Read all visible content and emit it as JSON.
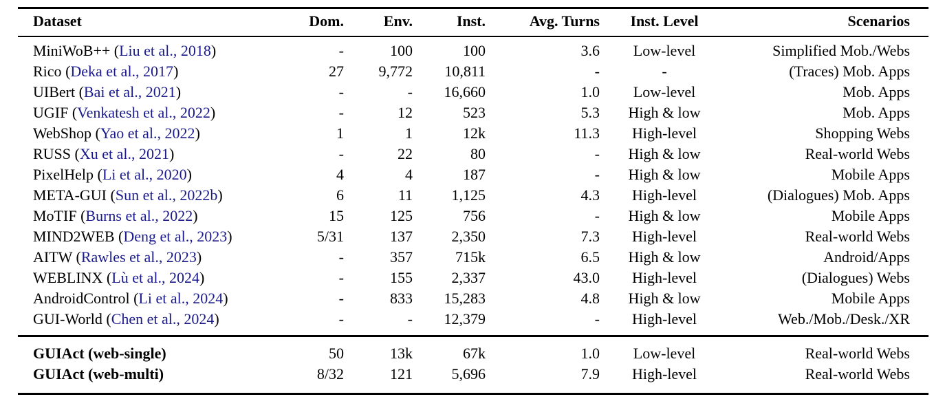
{
  "colors": {
    "background": "#ffffff",
    "text": "#000000",
    "citation_link": "#1a1a8c",
    "rule": "#000000"
  },
  "table": {
    "format": {
      "paren_open": "(",
      "paren_close": ")"
    },
    "columns": [
      {
        "key": "dataset",
        "label": "Dataset",
        "align": "left"
      },
      {
        "key": "dom",
        "label": "Dom.",
        "align": "right"
      },
      {
        "key": "env",
        "label": "Env.",
        "align": "right"
      },
      {
        "key": "inst",
        "label": "Inst.",
        "align": "right"
      },
      {
        "key": "avg_turns",
        "label": "Avg. Turns",
        "align": "right"
      },
      {
        "key": "inst_level",
        "label": "Inst. Level",
        "align": "center"
      },
      {
        "key": "scenarios",
        "label": "Scenarios",
        "align": "right"
      }
    ],
    "rows": [
      {
        "dataset_name": "MiniWoB++",
        "citation": "Liu et al., 2018",
        "dom": "-",
        "env": "100",
        "inst": "100",
        "avg_turns": "3.6",
        "inst_level": "Low-level",
        "scenarios": "Simplified Mob./Webs"
      },
      {
        "dataset_name": "Rico",
        "citation": "Deka et al., 2017",
        "dom": "27",
        "env": "9,772",
        "inst": "10,811",
        "avg_turns": "-",
        "inst_level": "-",
        "scenarios": "(Traces) Mob. Apps"
      },
      {
        "dataset_name": "UIBert",
        "citation": "Bai et al., 2021",
        "dom": "-",
        "env": "-",
        "inst": "16,660",
        "avg_turns": "1.0",
        "inst_level": "Low-level",
        "scenarios": "Mob. Apps"
      },
      {
        "dataset_name": "UGIF",
        "citation": "Venkatesh et al., 2022",
        "dom": "-",
        "env": "12",
        "inst": "523",
        "avg_turns": "5.3",
        "inst_level": "High & low",
        "scenarios": "Mob. Apps"
      },
      {
        "dataset_name": "WebShop",
        "citation": "Yao et al., 2022",
        "dom": "1",
        "env": "1",
        "inst": "12k",
        "avg_turns": "11.3",
        "inst_level": "High-level",
        "scenarios": "Shopping Webs"
      },
      {
        "dataset_name": "RUSS",
        "citation": "Xu et al., 2021",
        "dom": "-",
        "env": "22",
        "inst": "80",
        "avg_turns": "-",
        "inst_level": "High & low",
        "scenarios": "Real-world Webs"
      },
      {
        "dataset_name": "PixelHelp",
        "citation": "Li et al., 2020",
        "dom": "4",
        "env": "4",
        "inst": "187",
        "avg_turns": "-",
        "inst_level": "High & low",
        "scenarios": "Mobile Apps"
      },
      {
        "dataset_name": "META-GUI",
        "citation": "Sun et al., 2022b",
        "dom": "6",
        "env": "11",
        "inst": "1,125",
        "avg_turns": "4.3",
        "inst_level": "High-level",
        "scenarios": "(Dialogues) Mob. Apps"
      },
      {
        "dataset_name": "MoTIF",
        "citation": "Burns et al., 2022",
        "dom": "15",
        "env": "125",
        "inst": "756",
        "avg_turns": "-",
        "inst_level": "High & low",
        "scenarios": "Mobile Apps"
      },
      {
        "dataset_name": "MIND2WEB",
        "citation": "Deng et al., 2023",
        "dom": "5/31",
        "env": "137",
        "inst": "2,350",
        "avg_turns": "7.3",
        "inst_level": "High-level",
        "scenarios": "Real-world Webs"
      },
      {
        "dataset_name": "AITW",
        "citation": "Rawles et al., 2023",
        "dom": "-",
        "env": "357",
        "inst": "715k",
        "avg_turns": "6.5",
        "inst_level": "High & low",
        "scenarios": "Android/Apps"
      },
      {
        "dataset_name": "WEBLINX",
        "citation": "Lù et al., 2024",
        "dom": "-",
        "env": "155",
        "inst": "2,337",
        "avg_turns": "43.0",
        "inst_level": "High-level",
        "scenarios": "(Dialogues) Webs"
      },
      {
        "dataset_name": "AndroidControl",
        "citation": "Li et al., 2024",
        "dom": "-",
        "env": "833",
        "inst": "15,283",
        "avg_turns": "4.8",
        "inst_level": "High & low",
        "scenarios": "Mobile Apps"
      },
      {
        "dataset_name": "GUI-World",
        "citation": "Chen et al., 2024",
        "dom": "-",
        "env": "-",
        "inst": "12,379",
        "avg_turns": "-",
        "inst_level": "High-level",
        "scenarios": "Web./Mob./Desk./XR"
      }
    ],
    "guiact_rows": [
      {
        "dataset_name": "GUIAct (web-single)",
        "citation": null,
        "dom": "50",
        "env": "13k",
        "inst": "67k",
        "avg_turns": "1.0",
        "inst_level": "Low-level",
        "scenarios": "Real-world Webs"
      },
      {
        "dataset_name": "GUIAct (web-multi)",
        "citation": null,
        "dom": "8/32",
        "env": "121",
        "inst": "5,696",
        "avg_turns": "7.9",
        "inst_level": "High-level",
        "scenarios": "Real-world Webs"
      }
    ]
  }
}
